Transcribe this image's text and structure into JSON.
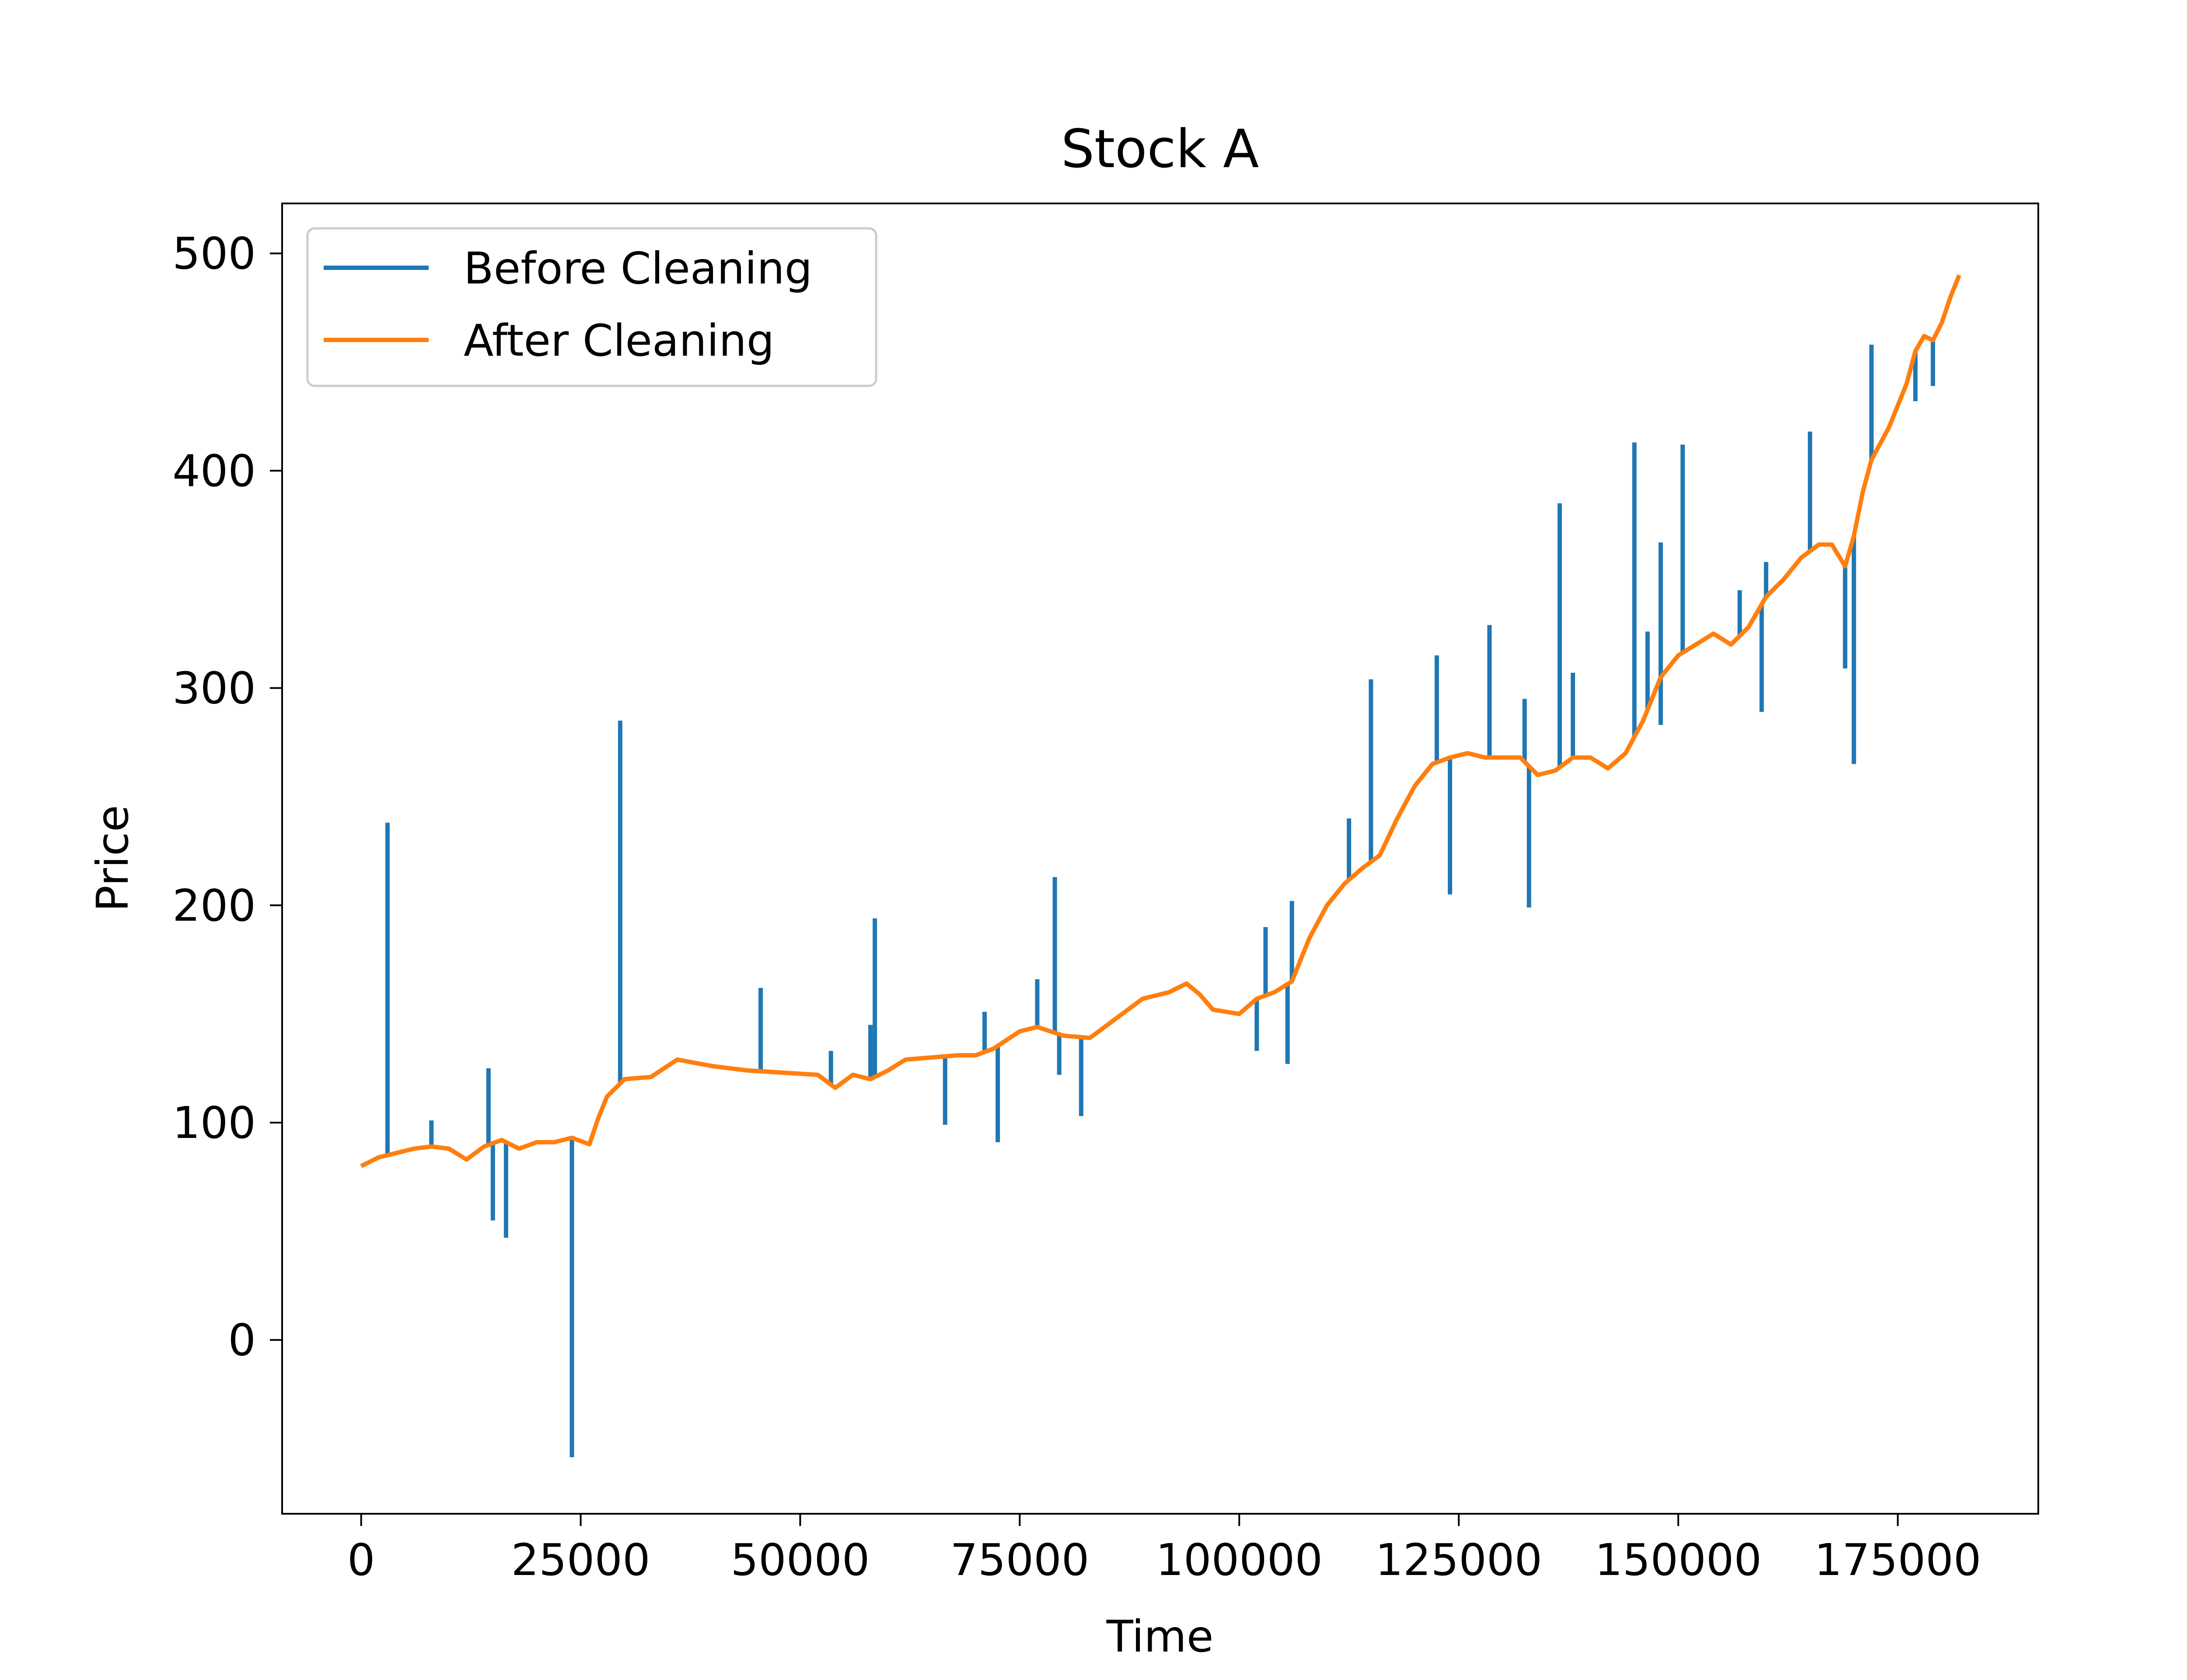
{
  "chart_data": {
    "type": "line",
    "title": "Stock A",
    "xlabel": "Time",
    "ylabel": "Price",
    "xlim": [
      -9000,
      191000
    ],
    "ylim": [
      -80,
      523
    ],
    "x_ticks": [
      0,
      25000,
      50000,
      75000,
      100000,
      125000,
      150000,
      175000
    ],
    "x_tick_labels": [
      "0",
      "25000",
      "50000",
      "75000",
      "100000",
      "125000",
      "150000",
      "175000"
    ],
    "y_ticks": [
      0,
      100,
      200,
      300,
      400,
      500
    ],
    "y_tick_labels": [
      "0",
      "100",
      "200",
      "300",
      "400",
      "500"
    ],
    "grid": false,
    "legend": {
      "position": "top-left",
      "entries": [
        "Before Cleaning",
        "After Cleaning"
      ]
    },
    "colors": {
      "before": "#1f77b4",
      "after": "#ff7f0e"
    },
    "series": [
      {
        "name": "After Cleaning",
        "x": [
          0,
          2000,
          4000,
          6000,
          8000,
          10000,
          12000,
          14000,
          16000,
          18000,
          20000,
          22000,
          24000,
          26000,
          27000,
          28000,
          30000,
          33000,
          36000,
          40000,
          44000,
          48000,
          52000,
          54000,
          56000,
          58000,
          60000,
          62000,
          65000,
          68000,
          70000,
          72000,
          75000,
          77000,
          80000,
          83000,
          86000,
          89000,
          92000,
          94000,
          95500,
          97000,
          100000,
          102000,
          104000,
          106000,
          108000,
          110000,
          112000,
          114000,
          116000,
          118000,
          120000,
          122000,
          124000,
          126000,
          128000,
          130000,
          132000,
          134000,
          136000,
          138000,
          140000,
          142000,
          144000,
          146000,
          148000,
          150000,
          152000,
          154000,
          156000,
          158000,
          160000,
          162000,
          164000,
          166000,
          167500,
          169000,
          170000,
          171000,
          172000,
          174000,
          176000,
          177000,
          178000,
          179000,
          180000,
          181000,
          182000
        ],
        "y": [
          80,
          84,
          86,
          88,
          89,
          88,
          83,
          89,
          92,
          88,
          91,
          91,
          93,
          90,
          102,
          112,
          120,
          121,
          129,
          126,
          124,
          123,
          122,
          116,
          122,
          120,
          124,
          129,
          130,
          131,
          131,
          134,
          142,
          144,
          140,
          139,
          148,
          157,
          160,
          164,
          159,
          152,
          150,
          157,
          160,
          165,
          185,
          200,
          210,
          217,
          223,
          240,
          255,
          265,
          268,
          270,
          268,
          268,
          268,
          260,
          262,
          268,
          268,
          263,
          270,
          285,
          305,
          315,
          320,
          325,
          320,
          328,
          342,
          350,
          360,
          366,
          366,
          356,
          370,
          390,
          405,
          420,
          440,
          455,
          462,
          460,
          468,
          480,
          490
        ]
      },
      {
        "name": "Before Cleaning",
        "spikes": [
          {
            "x": 3000,
            "y": 238
          },
          {
            "x": 8000,
            "y": 101
          },
          {
            "x": 14500,
            "y": 125
          },
          {
            "x": 15000,
            "y": 55
          },
          {
            "x": 16500,
            "y": 47
          },
          {
            "x": 24000,
            "y": -54
          },
          {
            "x": 29500,
            "y": 285
          },
          {
            "x": 45500,
            "y": 162
          },
          {
            "x": 53500,
            "y": 133
          },
          {
            "x": 58000,
            "y": 145
          },
          {
            "x": 58500,
            "y": 194
          },
          {
            "x": 66500,
            "y": 99
          },
          {
            "x": 71000,
            "y": 151
          },
          {
            "x": 72500,
            "y": 91
          },
          {
            "x": 77000,
            "y": 166
          },
          {
            "x": 79000,
            "y": 213
          },
          {
            "x": 79500,
            "y": 122
          },
          {
            "x": 82000,
            "y": 103
          },
          {
            "x": 102000,
            "y": 133
          },
          {
            "x": 103000,
            "y": 190
          },
          {
            "x": 105500,
            "y": 127
          },
          {
            "x": 106000,
            "y": 202
          },
          {
            "x": 112500,
            "y": 240
          },
          {
            "x": 115000,
            "y": 304
          },
          {
            "x": 122500,
            "y": 315
          },
          {
            "x": 124000,
            "y": 205
          },
          {
            "x": 128500,
            "y": 329
          },
          {
            "x": 132500,
            "y": 295
          },
          {
            "x": 133000,
            "y": 199
          },
          {
            "x": 136500,
            "y": 385
          },
          {
            "x": 138000,
            "y": 307
          },
          {
            "x": 145000,
            "y": 413
          },
          {
            "x": 146500,
            "y": 326
          },
          {
            "x": 148000,
            "y": 367
          },
          {
            "x": 148000,
            "y": 283
          },
          {
            "x": 150500,
            "y": 412
          },
          {
            "x": 157000,
            "y": 345
          },
          {
            "x": 159500,
            "y": 289
          },
          {
            "x": 160000,
            "y": 358
          },
          {
            "x": 165000,
            "y": 418
          },
          {
            "x": 169000,
            "y": 309
          },
          {
            "x": 170000,
            "y": 265
          },
          {
            "x": 172000,
            "y": 458
          },
          {
            "x": 177000,
            "y": 432
          },
          {
            "x": 179000,
            "y": 439
          }
        ]
      }
    ]
  }
}
